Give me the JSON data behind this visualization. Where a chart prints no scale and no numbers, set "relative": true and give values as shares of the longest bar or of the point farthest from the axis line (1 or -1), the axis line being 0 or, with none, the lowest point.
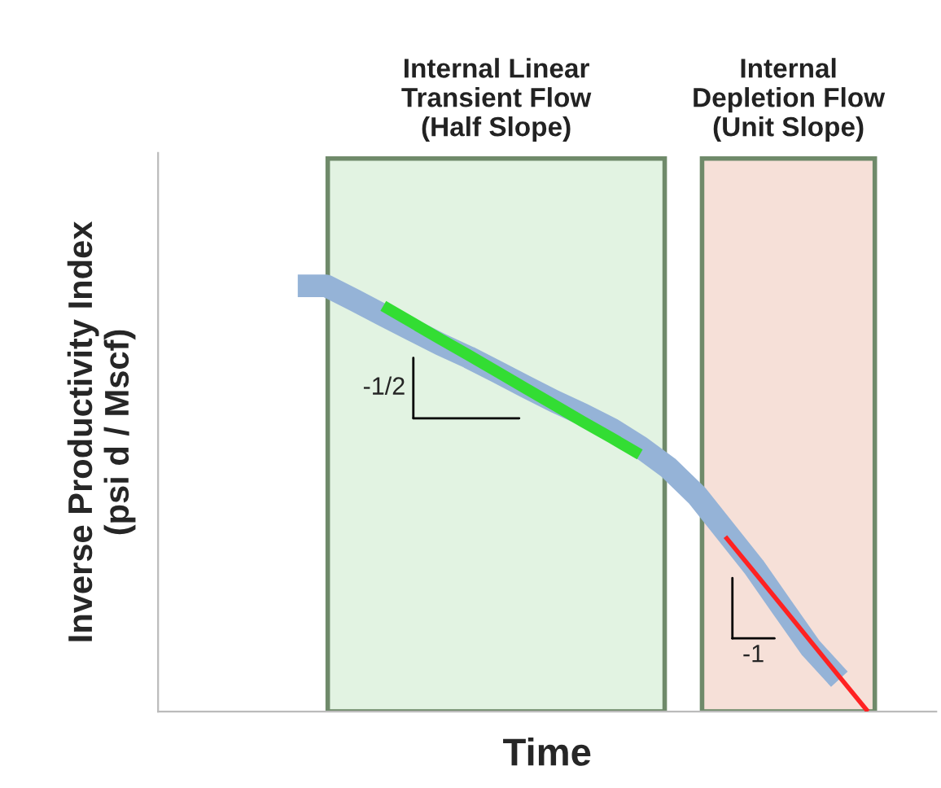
{
  "chart_data": {
    "type": "line",
    "relative": true,
    "xlabel": "Time",
    "ylabel": "Inverse Productivity Index\n(psi d / Mscf)",
    "categories": [
      null,
      null,
      null,
      null,
      null,
      null,
      null,
      null,
      null,
      null,
      null,
      null,
      null,
      null,
      null,
      null,
      null,
      null,
      null,
      null,
      null
    ],
    "series": [
      {
        "color": "#95b3d7",
        "values": [
          1.0,
          1.0,
          0.966,
          0.931,
          0.897,
          0.863,
          0.832,
          0.798,
          0.763,
          0.729,
          0.698,
          0.664,
          0.622,
          0.573,
          0.508,
          0.424,
          0.34,
          0.244,
          0.149,
          0.076,
          null
        ]
      },
      {
        "color": "#33dd33",
        "values": [
          null,
          null,
          null,
          0.953,
          0.914,
          0.875,
          0.837,
          0.798,
          0.759,
          0.72,
          0.681,
          0.643,
          0.604,
          null,
          null,
          null,
          null,
          null,
          null,
          null,
          null
        ]
      },
      {
        "color": "#ff2222",
        "values": [
          null,
          null,
          null,
          null,
          null,
          null,
          null,
          null,
          null,
          null,
          null,
          null,
          null,
          null,
          null,
          0.411,
          0.329,
          0.247,
          0.164,
          0.082,
          0.0
        ]
      }
    ],
    "annotations": [
      "Internal Linear\nTransient Flow\n(Half Slope)",
      "Internal\nDepletion Flow\n(Unit Slope)",
      "-1/2",
      "-1"
    ],
    "grid": false,
    "legend": false,
    "marker": "none",
    "line_style": "solid"
  }
}
